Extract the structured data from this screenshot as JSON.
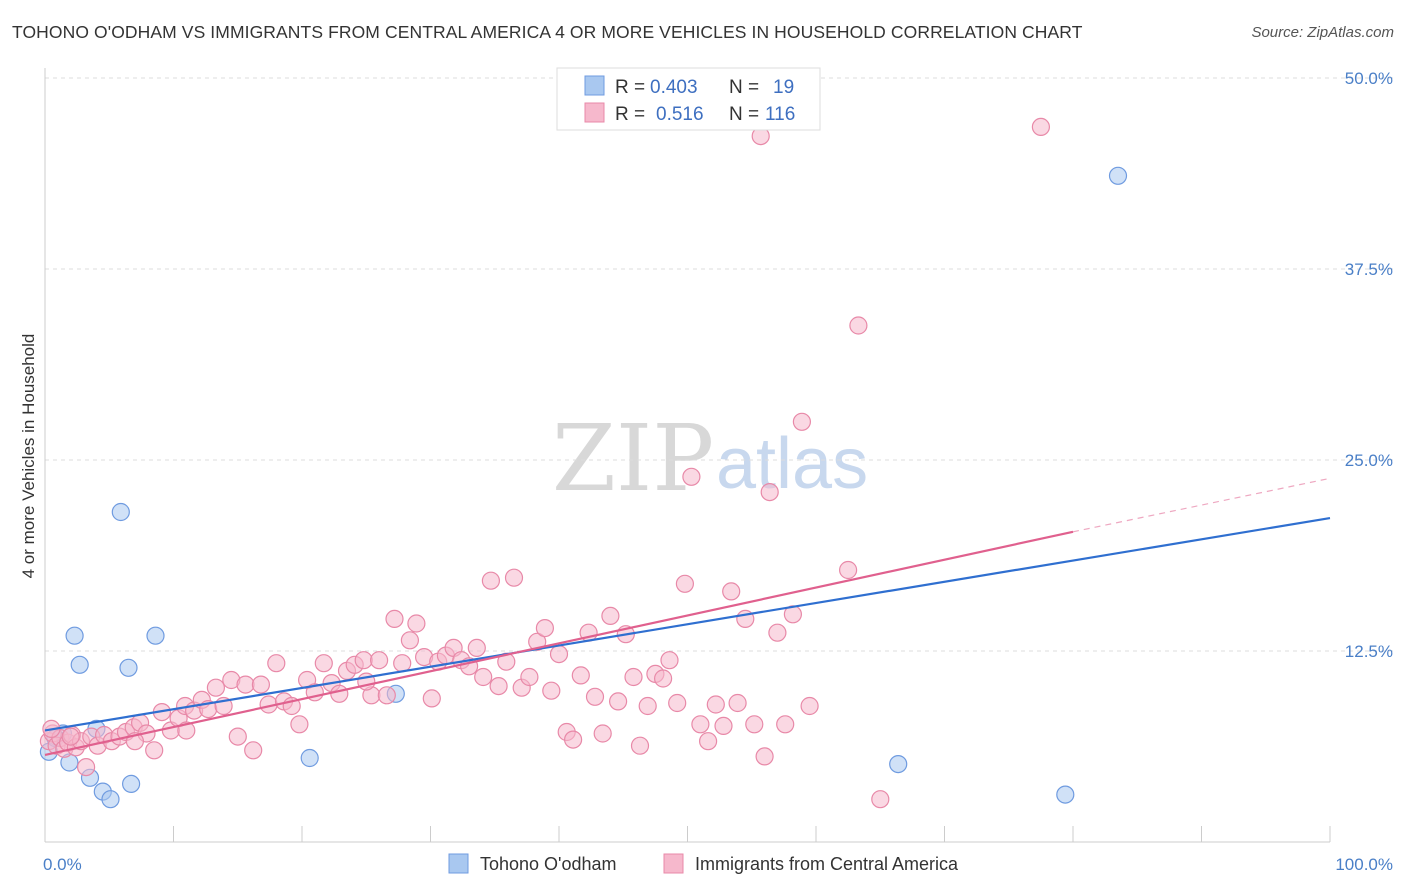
{
  "title": "TOHONO O'ODHAM VS IMMIGRANTS FROM CENTRAL AMERICA 4 OR MORE VEHICLES IN HOUSEHOLD CORRELATION CHART",
  "source": "Source: ZipAtlas.com",
  "watermark": {
    "zip": "ZIP",
    "atlas": "atlas"
  },
  "legend": {
    "rows": [
      {
        "r_label": "R =",
        "r_value": "0.403",
        "n_label": "N =",
        "n_value": "19",
        "color": "#a9c8f0",
        "stroke": "#6f9be0"
      },
      {
        "r_label": "R =",
        "r_value": "0.516",
        "n_label": "N =",
        "n_value": "116",
        "color": "#f6b8cc",
        "stroke": "#e889a8"
      }
    ]
  },
  "bottom_legend": [
    {
      "label": "Tohono O'odham",
      "color": "#a9c8f0",
      "stroke": "#6f9be0"
    },
    {
      "label": "Immigrants from Central America",
      "color": "#f6b8cc",
      "stroke": "#e889a8"
    }
  ],
  "chart_data": {
    "type": "scatter",
    "title": "TOHONO O'ODHAM VS IMMIGRANTS FROM CENTRAL AMERICA 4 OR MORE VEHICLES IN HOUSEHOLD CORRELATION CHART",
    "xlabel": "",
    "ylabel": "4 or more Vehicles in Household",
    "xlim": [
      0,
      100
    ],
    "ylim": [
      0,
      50
    ],
    "x_tick_labels": [
      "0.0%",
      "100.0%"
    ],
    "y_ticks": [
      12.5,
      25.0,
      37.5,
      50.0
    ],
    "y_tick_labels": [
      "12.5%",
      "25.0%",
      "37.5%",
      "50.0%"
    ],
    "grid": true,
    "series": [
      {
        "name": "Tohono O'odham",
        "color": "#a9c8f0",
        "stroke": "#6f9be0",
        "trend_color": "#2f6fd0",
        "trend": {
          "x0": 0,
          "y0": 7.3,
          "x1": 100,
          "y1": 21.2
        },
        "points": [
          [
            0.3,
            5.9
          ],
          [
            1.4,
            7.1
          ],
          [
            1.9,
            5.2
          ],
          [
            2.3,
            13.5
          ],
          [
            2.7,
            11.6
          ],
          [
            3.5,
            4.2
          ],
          [
            4.0,
            7.4
          ],
          [
            4.5,
            3.3
          ],
          [
            5.1,
            2.8
          ],
          [
            5.9,
            21.6
          ],
          [
            6.5,
            11.4
          ],
          [
            6.7,
            3.8
          ],
          [
            8.6,
            13.5
          ],
          [
            20.6,
            5.5
          ],
          [
            27.3,
            9.7
          ],
          [
            66.4,
            5.1
          ],
          [
            79.4,
            3.1
          ],
          [
            83.5,
            43.6
          ],
          [
            0.8,
            6.8
          ]
        ]
      },
      {
        "name": "Immigrants from Central America",
        "color": "#f6b8cc",
        "stroke": "#e889a8",
        "trend_color": "#e0608e",
        "trend": {
          "x0": 0,
          "y0": 5.7,
          "x1": 80,
          "y1": 20.3,
          "dash_x1": 100,
          "dash_y1": 23.8
        },
        "points": [
          [
            0.3,
            6.6
          ],
          [
            0.6,
            7.1
          ],
          [
            0.9,
            6.3
          ],
          [
            1.2,
            6.8
          ],
          [
            1.5,
            6.1
          ],
          [
            1.8,
            6.5
          ],
          [
            2.1,
            7.0
          ],
          [
            2.4,
            6.2
          ],
          [
            2.8,
            6.6
          ],
          [
            3.2,
            4.9
          ],
          [
            3.6,
            6.9
          ],
          [
            4.1,
            6.3
          ],
          [
            4.6,
            7.0
          ],
          [
            5.2,
            6.6
          ],
          [
            5.8,
            6.9
          ],
          [
            6.3,
            7.2
          ],
          [
            6.9,
            7.5
          ],
          [
            7.4,
            7.8
          ],
          [
            7.9,
            7.1
          ],
          [
            8.5,
            6.0
          ],
          [
            9.1,
            8.5
          ],
          [
            9.8,
            7.3
          ],
          [
            10.4,
            8.1
          ],
          [
            10.9,
            8.9
          ],
          [
            11.6,
            8.6
          ],
          [
            12.2,
            9.3
          ],
          [
            12.7,
            8.7
          ],
          [
            13.3,
            10.1
          ],
          [
            13.9,
            8.9
          ],
          [
            14.5,
            10.6
          ],
          [
            15.0,
            6.9
          ],
          [
            15.6,
            10.3
          ],
          [
            16.2,
            6.0
          ],
          [
            16.8,
            10.3
          ],
          [
            17.4,
            9.0
          ],
          [
            18.0,
            11.7
          ],
          [
            18.6,
            9.2
          ],
          [
            19.2,
            8.9
          ],
          [
            19.8,
            7.7
          ],
          [
            20.4,
            10.6
          ],
          [
            21.0,
            9.8
          ],
          [
            21.7,
            11.7
          ],
          [
            22.3,
            10.4
          ],
          [
            22.9,
            9.7
          ],
          [
            23.5,
            11.2
          ],
          [
            24.1,
            11.6
          ],
          [
            24.8,
            11.9
          ],
          [
            25.4,
            9.6
          ],
          [
            26.0,
            11.9
          ],
          [
            26.6,
            9.6
          ],
          [
            27.2,
            14.6
          ],
          [
            27.8,
            11.7
          ],
          [
            28.4,
            13.2
          ],
          [
            28.9,
            14.3
          ],
          [
            29.5,
            12.1
          ],
          [
            30.1,
            9.4
          ],
          [
            30.6,
            11.8
          ],
          [
            31.2,
            12.2
          ],
          [
            31.8,
            12.7
          ],
          [
            32.4,
            11.9
          ],
          [
            33.0,
            11.5
          ],
          [
            33.6,
            12.7
          ],
          [
            34.1,
            10.8
          ],
          [
            34.7,
            17.1
          ],
          [
            35.3,
            10.2
          ],
          [
            35.9,
            11.8
          ],
          [
            36.5,
            17.3
          ],
          [
            37.1,
            10.1
          ],
          [
            37.7,
            10.8
          ],
          [
            38.3,
            13.1
          ],
          [
            38.9,
            14.0
          ],
          [
            39.4,
            9.9
          ],
          [
            40.0,
            12.3
          ],
          [
            40.6,
            7.2
          ],
          [
            41.1,
            6.7
          ],
          [
            41.7,
            10.9
          ],
          [
            42.3,
            13.7
          ],
          [
            42.8,
            9.5
          ],
          [
            43.4,
            7.1
          ],
          [
            44.0,
            14.8
          ],
          [
            44.6,
            9.2
          ],
          [
            45.2,
            13.6
          ],
          [
            45.8,
            10.8
          ],
          [
            46.3,
            6.3
          ],
          [
            46.9,
            8.9
          ],
          [
            47.5,
            11.0
          ],
          [
            48.1,
            10.7
          ],
          [
            48.6,
            11.9
          ],
          [
            49.2,
            9.1
          ],
          [
            49.8,
            16.9
          ],
          [
            50.3,
            23.9
          ],
          [
            51.0,
            7.7
          ],
          [
            51.6,
            6.6
          ],
          [
            52.2,
            9.0
          ],
          [
            52.8,
            7.6
          ],
          [
            53.4,
            16.4
          ],
          [
            53.9,
            9.1
          ],
          [
            54.5,
            14.6
          ],
          [
            55.2,
            7.7
          ],
          [
            55.7,
            46.2
          ],
          [
            56.0,
            5.6
          ],
          [
            56.4,
            22.9
          ],
          [
            57.0,
            13.7
          ],
          [
            57.6,
            7.7
          ],
          [
            58.2,
            14.9
          ],
          [
            58.9,
            27.5
          ],
          [
            59.5,
            8.9
          ],
          [
            62.5,
            17.8
          ],
          [
            63.3,
            33.8
          ],
          [
            65.0,
            2.8
          ],
          [
            77.5,
            46.8
          ],
          [
            0.5,
            7.4
          ],
          [
            2.0,
            6.9
          ],
          [
            7.0,
            6.6
          ],
          [
            11.0,
            7.3
          ],
          [
            25.0,
            10.5
          ]
        ]
      }
    ]
  }
}
